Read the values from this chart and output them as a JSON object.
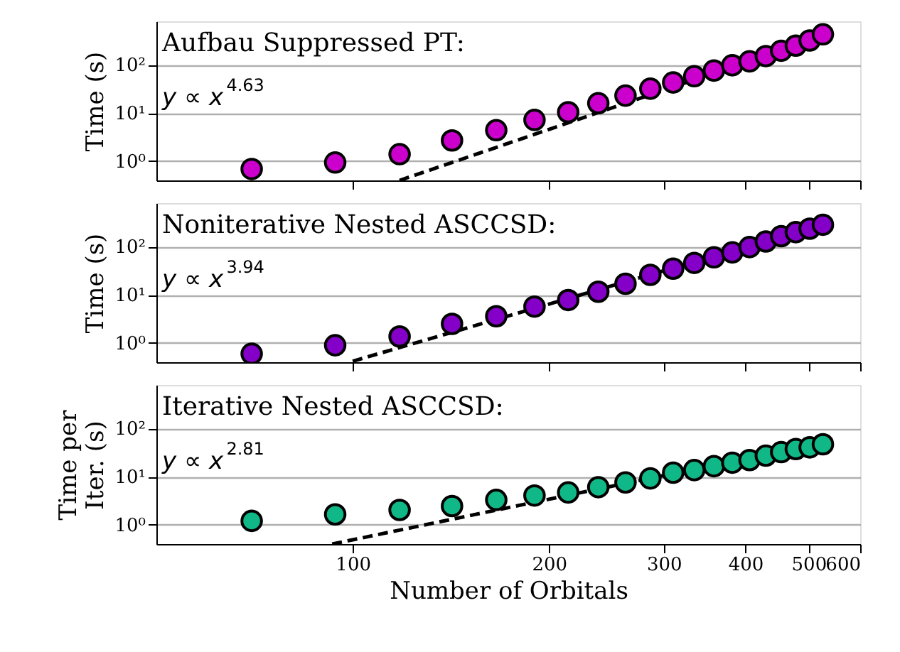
{
  "chart_data": [
    {
      "type": "scatter",
      "ylabel": "Time (s)",
      "log": "xy",
      "grid": "y",
      "tick_labels": "y",
      "annotations": [
        "Aufbau Suppressed PT:",
        "y ∝ x$^{4.63}$"
      ],
      "x": [
        70,
        94,
        118,
        142,
        166,
        190,
        214,
        238,
        262,
        286,
        310,
        334,
        358,
        382,
        406,
        430,
        454,
        478,
        502,
        526
      ],
      "series": [
        {
          "type": "scatter",
          "marker": "circle",
          "color": "#cc00cc",
          "values": [
            0.69,
            0.94,
            1.4,
            2.7,
            4.4,
            7.2,
            10.4,
            16,
            23,
            32,
            43,
            58,
            76,
            98,
            118,
            152,
            196,
            250,
            320,
            430
          ]
        },
        {
          "type": "line",
          "line_style": "dashed",
          "color": "#000000",
          "x": [
            118,
            526
          ],
          "values": [
            0.4,
            400
          ]
        }
      ],
      "xlim": [
        50,
        600
      ],
      "ylim": [
        0.4,
        800
      ],
      "xticks": [
        100,
        200,
        300,
        400,
        500,
        600
      ],
      "yticks": [
        {
          "value": 1,
          "label": "10⁰"
        },
        {
          "value": 10,
          "label": "10¹"
        },
        {
          "value": 100,
          "label": "10²"
        }
      ]
    },
    {
      "type": "scatter",
      "ylabel": "Time (s)",
      "log": "xy",
      "grid": "y",
      "tick_labels": "y",
      "annotations": [
        "Noniterative Nested ASCCSD:",
        "y ∝ x$^{3.94}$"
      ],
      "x": [
        70,
        94,
        118,
        142,
        166,
        190,
        214,
        238,
        262,
        286,
        310,
        334,
        358,
        382,
        406,
        430,
        454,
        478,
        502,
        526
      ],
      "series": [
        {
          "type": "scatter",
          "marker": "circle",
          "color": "#8400c8",
          "values": [
            0.6,
            0.9,
            1.37,
            2.5,
            3.6,
            5.7,
            7.8,
            11.6,
            17,
            26,
            35,
            46,
            60,
            76,
            98,
            128,
            165,
            200,
            236,
            285
          ]
        },
        {
          "type": "line",
          "line_style": "dashed",
          "color": "#000000",
          "x": [
            100,
            526
          ],
          "values": [
            0.42,
            290
          ]
        }
      ],
      "xlim": [
        50,
        600
      ],
      "ylim": [
        0.4,
        800
      ],
      "xticks": [
        100,
        200,
        300,
        400,
        500,
        600
      ],
      "yticks": [
        {
          "value": 1,
          "label": "10⁰"
        },
        {
          "value": 10,
          "label": "10¹"
        },
        {
          "value": 100,
          "label": "10²"
        }
      ]
    },
    {
      "type": "scatter",
      "ylabel": "Time per\nIter. (s)",
      "xlabel": "Number of Orbitals",
      "log": "xy",
      "grid": "y",
      "annotations": [
        "Iterative Nested ASCCSD:",
        "y ∝ x$^{2.81}$"
      ],
      "x": [
        70,
        94,
        118,
        142,
        166,
        190,
        214,
        238,
        262,
        286,
        310,
        334,
        358,
        382,
        406,
        430,
        454,
        478,
        502,
        526
      ],
      "series": [
        {
          "type": "scatter",
          "marker": "circle",
          "color": "#10b888",
          "values": [
            1.21,
            1.65,
            2.04,
            2.46,
            3.3,
            4.06,
            4.7,
            6.05,
            7.6,
            9.2,
            12.1,
            13.7,
            16.5,
            19.5,
            22.1,
            27.3,
            32.3,
            37.4,
            40.6,
            47
          ]
        },
        {
          "type": "line",
          "line_style": "dashed",
          "color": "#000000",
          "x": [
            93,
            526
          ],
          "values": [
            0.4,
            51
          ]
        }
      ],
      "xlim": [
        50,
        600
      ],
      "ylim": [
        0.4,
        800
      ],
      "xticks": [
        100,
        200,
        300,
        400,
        500,
        600
      ],
      "yticks": [
        {
          "value": 1,
          "label": "10⁰"
        },
        {
          "value": 10,
          "label": "10¹"
        },
        {
          "value": 100,
          "label": "10²"
        }
      ]
    }
  ]
}
